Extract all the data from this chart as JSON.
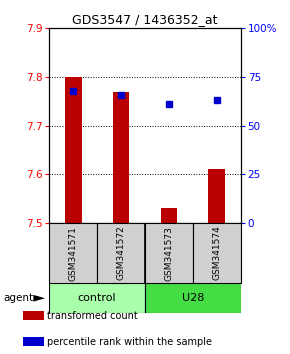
{
  "title": "GDS3547 / 1436352_at",
  "samples": [
    "GSM341571",
    "GSM341572",
    "GSM341573",
    "GSM341574"
  ],
  "bar_values": [
    7.8,
    7.77,
    7.53,
    7.61
  ],
  "bar_color": "#bb0000",
  "bar_bottom": 7.5,
  "percentile_values": [
    68,
    66,
    61,
    63
  ],
  "percentile_color": "#0000cc",
  "ylim_left": [
    7.5,
    7.9
  ],
  "ylim_right": [
    0,
    100
  ],
  "yticks_left": [
    7.5,
    7.6,
    7.7,
    7.8,
    7.9
  ],
  "yticks_right": [
    0,
    25,
    50,
    75,
    100
  ],
  "ytick_labels_right": [
    "0",
    "25",
    "50",
    "75",
    "100%"
  ],
  "groups": [
    {
      "label": "control",
      "color": "#aaffaa"
    },
    {
      "label": "U28",
      "color": "#44dd44"
    }
  ],
  "agent_label": "agent",
  "legend": [
    {
      "color": "#bb0000",
      "label": "transformed count"
    },
    {
      "color": "#0000cc",
      "label": "percentile rank within the sample"
    }
  ],
  "bar_width": 0.35,
  "figsize": [
    2.9,
    3.54
  ],
  "dpi": 100
}
